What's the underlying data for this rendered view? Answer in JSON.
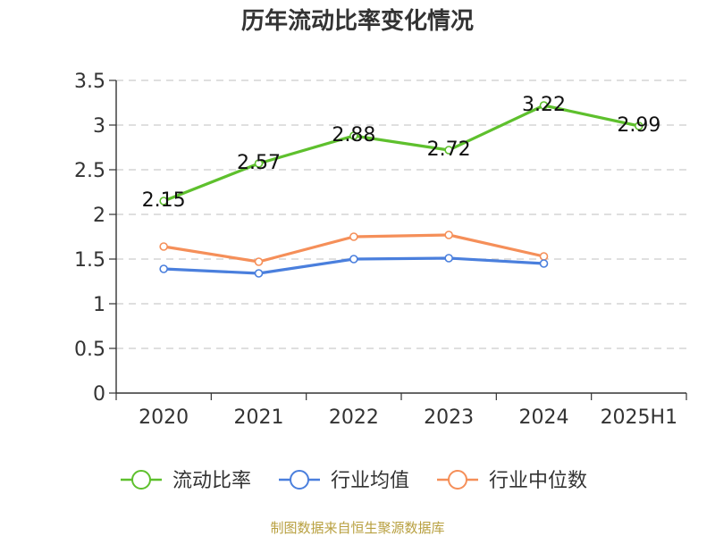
{
  "chart_data": {
    "type": "line",
    "title": "历年流动比率变化情况",
    "categories": [
      "2020",
      "2021",
      "2022",
      "2023",
      "2024",
      "2025H1"
    ],
    "ylim": [
      0,
      3.5
    ],
    "yticks": [
      "0",
      "0.5",
      "1",
      "1.5",
      "2",
      "2.5",
      "3",
      "3.5"
    ],
    "grid": true,
    "legend_position": "bottom",
    "series": [
      {
        "name": "流动比率",
        "color": "#5ec02d",
        "values": [
          2.15,
          2.57,
          2.88,
          2.72,
          3.22,
          2.99
        ],
        "labels": [
          "2.15",
          "2.57",
          "2.88",
          "2.72",
          "3.22",
          "2.99"
        ],
        "show_labels": true
      },
      {
        "name": "行业均值",
        "color": "#4a7fdd",
        "values": [
          1.39,
          1.34,
          1.5,
          1.51,
          1.45,
          null
        ],
        "show_labels": false
      },
      {
        "name": "行业中位数",
        "color": "#f58f59",
        "values": [
          1.64,
          1.47,
          1.75,
          1.77,
          1.53,
          null
        ],
        "show_labels": false
      }
    ]
  },
  "footer": {
    "source": "制图数据来自恒生聚源数据库"
  }
}
